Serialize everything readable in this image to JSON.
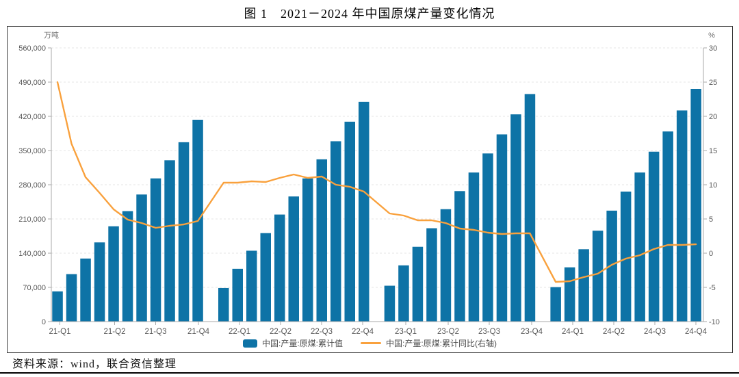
{
  "page": {
    "title": "图 1　2021－2024 年中国原煤产量变化情况",
    "source_note": "资料来源：wind，联合资信整理"
  },
  "colors": {
    "bar": "#0E73A6",
    "line": "#F9A13D",
    "grid": "#E4E4E4",
    "axis": "#A9A9A9",
    "tick_text": "#595959",
    "unit_text": "#737373"
  },
  "chart_data": {
    "type": "bar",
    "combo": "bar+line",
    "title": "图 1　2021－2024 年中国原煤产量变化情况",
    "grid": true,
    "legend_position": "bottom",
    "left_axis": {
      "title": "万吨",
      "min": 0,
      "max": 560000,
      "tick_step": 70000,
      "tick_values": [
        0,
        70000,
        140000,
        210000,
        280000,
        350000,
        420000,
        490000,
        560000
      ],
      "tick_labels": [
        "0",
        "70,000",
        "140,000",
        "210,000",
        "280,000",
        "350,000",
        "420,000",
        "490,000",
        "560,000"
      ]
    },
    "right_axis": {
      "title": "%",
      "min": -10,
      "max": 30,
      "tick_step": 5,
      "tick_values": [
        -10,
        -5,
        0,
        5,
        10,
        15,
        20,
        25,
        30
      ],
      "tick_labels": [
        "-10",
        "-5",
        "0",
        "5",
        "10",
        "15",
        "20",
        "25",
        "30"
      ]
    },
    "x_tick_labels": [
      "21-Q1",
      "21-Q2",
      "21-Q3",
      "21-Q4",
      "22-Q1",
      "22-Q2",
      "22-Q3",
      "22-Q4",
      "23-Q1",
      "23-Q2",
      "23-Q3",
      "23-Q4",
      "24-Q1",
      "24-Q2",
      "24-Q3",
      "24-Q4"
    ],
    "years": [
      "2021",
      "2022",
      "2023",
      "2024"
    ],
    "months_per_year_note": "11 monthly cumulative points per year (Jan-Feb combined through Dec)",
    "series": [
      {
        "name": "中国:产量:原煤:累计值",
        "type": "bar",
        "axis": "left",
        "color": "#0E73A6",
        "values_by_year": [
          [
            61760,
            97056,
            129000,
            162000,
            195000,
            226000,
            260000,
            293000,
            330000,
            367000,
            413000
          ],
          [
            68660,
            108000,
            145000,
            181000,
            219000,
            256000,
            293000,
            332000,
            369000,
            409000,
            449600
          ],
          [
            73400,
            115000,
            153000,
            191000,
            230000,
            267000,
            305000,
            344000,
            383000,
            424000,
            465600
          ],
          [
            70500,
            111000,
            148000,
            186000,
            227000,
            266000,
            305000,
            347600,
            389000,
            432000,
            476000
          ]
        ]
      },
      {
        "name": "中国:产量:原煤:累计同比(右轴)",
        "type": "line",
        "axis": "right",
        "color": "#F9A13D",
        "values_by_year": [
          [
            25.0,
            16.0,
            11.1,
            8.8,
            6.4,
            4.9,
            4.4,
            3.7,
            4.0,
            4.2,
            4.7
          ],
          [
            10.3,
            10.3,
            10.5,
            10.4,
            11.0,
            11.5,
            11.0,
            11.2,
            10.0,
            9.7,
            9.0
          ],
          [
            5.8,
            5.5,
            4.8,
            4.8,
            4.4,
            3.6,
            3.4,
            3.0,
            2.8,
            2.9,
            2.9
          ],
          [
            -4.2,
            -4.1,
            -3.5,
            -3.0,
            -1.7,
            -0.8,
            -0.3,
            0.6,
            1.2,
            1.2,
            1.3
          ]
        ]
      }
    ]
  }
}
